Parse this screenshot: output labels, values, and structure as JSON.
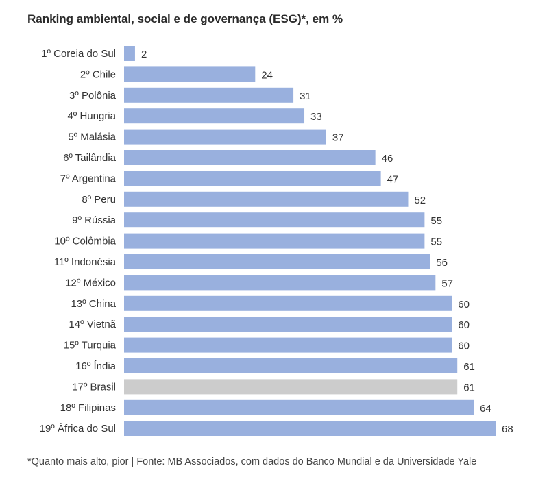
{
  "chart_data": {
    "type": "bar",
    "orientation": "horizontal",
    "title": "Ranking ambiental, social e de governança (ESG)*, em %",
    "categories": [
      "1º Coreia do Sul",
      "2º Chile",
      "3º Polônia",
      "4º Hungria",
      "5º Malásia",
      "6º Tailândia",
      "7º Argentina",
      "8º Peru",
      "9º Rússia",
      "10º Colômbia",
      "11º Indonésia",
      "12º México",
      "13º China",
      "14º Vietnã",
      "15º Turquia",
      "16º Índia",
      "17º Brasil",
      "18º Filipinas",
      "19º África do Sul"
    ],
    "values": [
      2,
      24,
      31,
      33,
      37,
      46,
      47,
      52,
      55,
      55,
      56,
      57,
      60,
      60,
      60,
      61,
      61,
      64,
      68
    ],
    "value_labels": [
      "2",
      "24",
      "31",
      "33",
      "37",
      "46",
      "47",
      "52",
      "55",
      "55",
      "56",
      "57",
      "60",
      "60",
      "60",
      "61",
      "61",
      "64",
      "68"
    ],
    "highlight_category": "17º Brasil",
    "xlim": [
      0,
      68
    ],
    "grid": false,
    "legend": "none",
    "colors": {
      "bar": "#99b0de",
      "highlight": "#cccccc"
    }
  },
  "footnote": "*Quanto mais alto, pior | Fonte: MB Associados, com dados do Banco Mundial e da Universidade Yale"
}
